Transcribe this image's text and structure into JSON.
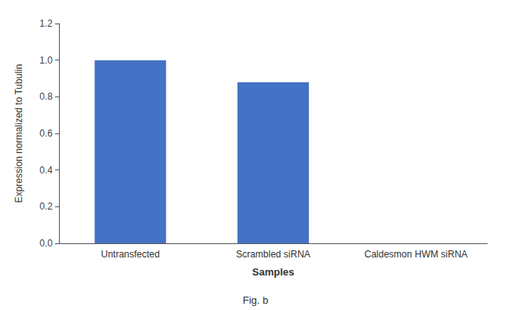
{
  "chart_data": {
    "type": "bar",
    "categories": [
      "Untransfected",
      "Scrambled siRNA",
      "Caldesmon HWM siRNA"
    ],
    "values": [
      1.0,
      0.88,
      0.0
    ],
    "color": "#4472c4",
    "xlabel": "Samples",
    "ylabel": "Expression normalized to Tubulin",
    "annotations": [
      "Fig. b"
    ],
    "ylim": [
      0,
      1.2
    ],
    "yticks": [
      {
        "value": 0,
        "label": "0.0"
      },
      0.2,
      0.4,
      0.6,
      0.8,
      {
        "value": 1.0,
        "label": "1.0"
      },
      1.2
    ],
    "grid": false
  }
}
